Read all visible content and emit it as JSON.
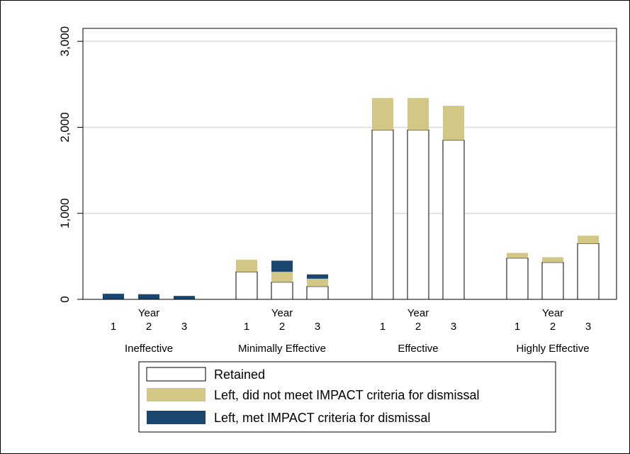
{
  "chart_data": {
    "type": "bar",
    "stacked": true,
    "groups": [
      "Ineffective",
      "Minimally Effective",
      "Effective",
      "Highly Effective"
    ],
    "year_label": "Year",
    "years": [
      "1",
      "2",
      "3"
    ],
    "y_ticks": [
      0,
      1000,
      2000,
      3000
    ],
    "y_tick_labels": [
      "0",
      "1,000",
      "2,000",
      "3,000"
    ],
    "ylim": [
      0,
      3150
    ],
    "grid": true,
    "legend_position": "bottom",
    "series": [
      {
        "name": "Retained",
        "color": "#ffffff",
        "values": [
          [
            0,
            0,
            0
          ],
          [
            320,
            200,
            150
          ],
          [
            1970,
            1970,
            1850
          ],
          [
            480,
            430,
            650
          ]
        ]
      },
      {
        "name": "Left, did not meet IMPACT criteria for dismissal",
        "color": "#d2c785",
        "values": [
          [
            0,
            0,
            0
          ],
          [
            140,
            120,
            90
          ],
          [
            370,
            370,
            400
          ],
          [
            60,
            60,
            90
          ]
        ]
      },
      {
        "name": "Left, met IMPACT criteria for dismissal",
        "color": "#1a476f",
        "values": [
          [
            65,
            60,
            40
          ],
          [
            0,
            130,
            50
          ],
          [
            0,
            0,
            0
          ],
          [
            0,
            0,
            0
          ]
        ]
      }
    ]
  }
}
